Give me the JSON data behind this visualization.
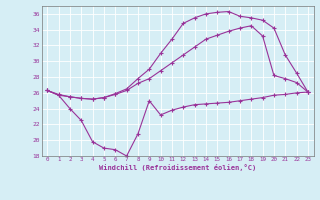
{
  "xlabel": "Windchill (Refroidissement éolien,°C)",
  "xlim": [
    -0.5,
    23.5
  ],
  "ylim": [
    18,
    37
  ],
  "yticks": [
    18,
    20,
    22,
    24,
    26,
    28,
    30,
    32,
    34,
    36
  ],
  "xticks": [
    0,
    1,
    2,
    3,
    4,
    5,
    6,
    7,
    8,
    9,
    10,
    11,
    12,
    13,
    14,
    15,
    16,
    17,
    18,
    19,
    20,
    21,
    22,
    23
  ],
  "background_color": "#d6eef5",
  "grid_color": "#ffffff",
  "line_color": "#993399",
  "line1_x": [
    0,
    1,
    2,
    3,
    4,
    5,
    6,
    7,
    8,
    9,
    10,
    11,
    12,
    13,
    14,
    15,
    16,
    17,
    18,
    19,
    20,
    21,
    22,
    23
  ],
  "line1_y": [
    26.3,
    25.7,
    24.0,
    22.5,
    19.8,
    19.0,
    18.8,
    18.0,
    20.8,
    25.0,
    23.2,
    23.8,
    24.2,
    24.5,
    24.6,
    24.7,
    24.8,
    25.0,
    25.2,
    25.4,
    25.7,
    25.8,
    26.0,
    26.1
  ],
  "line2_x": [
    0,
    1,
    2,
    3,
    4,
    5,
    6,
    7,
    8,
    9,
    10,
    11,
    12,
    13,
    14,
    15,
    16,
    17,
    18,
    19,
    20,
    21,
    22,
    23
  ],
  "line2_y": [
    26.3,
    25.7,
    25.5,
    25.3,
    25.2,
    25.4,
    25.8,
    26.3,
    27.2,
    27.8,
    28.8,
    29.8,
    30.8,
    31.8,
    32.8,
    33.3,
    33.8,
    34.2,
    34.5,
    33.2,
    28.2,
    27.8,
    27.3,
    26.1
  ],
  "line3_x": [
    0,
    1,
    2,
    3,
    4,
    5,
    6,
    7,
    8,
    9,
    10,
    11,
    12,
    13,
    14,
    15,
    16,
    17,
    18,
    19,
    20,
    21,
    22,
    23
  ],
  "line3_y": [
    26.3,
    25.8,
    25.5,
    25.3,
    25.2,
    25.4,
    25.9,
    26.5,
    27.8,
    29.0,
    31.0,
    32.8,
    34.8,
    35.5,
    36.0,
    36.2,
    36.3,
    35.7,
    35.5,
    35.2,
    34.2,
    30.8,
    28.5,
    26.1
  ]
}
